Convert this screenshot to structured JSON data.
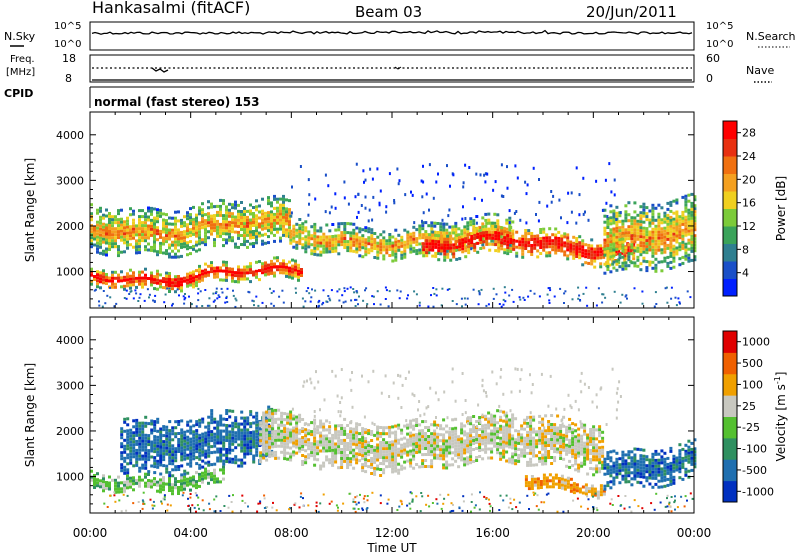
{
  "header": {
    "station": "Hankasalmi (fitACF)",
    "beam": "Beam 03",
    "date": "20/Jun/2011"
  },
  "sky_panel": {
    "left_label": "N.Sky",
    "right_label": "N.Search",
    "ytop": "10^5",
    "ybottom": "10^0"
  },
  "freq_panel": {
    "left_label_line1": "Freq.",
    "left_label_line2": "[MHz]",
    "left_top": "18",
    "left_bottom": "8",
    "right_label": "Nave",
    "right_top": "60",
    "right_bottom": "0"
  },
  "cpid": {
    "label": "CPID",
    "value": "normal (fast stereo) 153"
  },
  "chart_data": [
    {
      "type": "heatmap",
      "ylabel": "Slant Range [km]",
      "y_ticks": [
        "1000",
        "2000",
        "3000",
        "4000"
      ],
      "ylim": [
        200,
        4500
      ],
      "x_ticks": [
        "00:00",
        "04:00",
        "08:00",
        "12:00",
        "16:00",
        "20:00",
        "00:00"
      ],
      "colorbar": {
        "label": "Power [dB]",
        "ticks": [
          "4",
          "8",
          "12",
          "16",
          "20",
          "24",
          "28"
        ],
        "colors": [
          "#0020ff",
          "#1a4fc8",
          "#2f7f90",
          "#3aa35a",
          "#7ccb3a",
          "#f0d020",
          "#f4a020",
          "#f07010",
          "#e83010",
          "#ff0000"
        ]
      },
      "bands": [
        {
          "t0": 0.0,
          "t1": 0.33,
          "r_low": 1500,
          "r_high": 2500,
          "level": 0.55
        },
        {
          "t0": 0.0,
          "t1": 0.35,
          "r_low": 750,
          "r_high": 1150,
          "level": 0.8
        },
        {
          "t0": 0.33,
          "t1": 0.7,
          "r_low": 1400,
          "r_high": 2100,
          "level": 0.55
        },
        {
          "t0": 0.55,
          "t1": 0.9,
          "r_low": 1300,
          "r_high": 1900,
          "level": 0.85
        },
        {
          "t0": 0.85,
          "t1": 1.0,
          "r_low": 1100,
          "r_high": 2600,
          "level": 0.55
        }
      ]
    },
    {
      "type": "heatmap",
      "ylabel": "Slant Range [km]",
      "y_ticks": [
        "1000",
        "2000",
        "3000",
        "4000"
      ],
      "ylim": [
        200,
        4500
      ],
      "x_ticks": [
        "00:00",
        "04:00",
        "08:00",
        "12:00",
        "16:00",
        "20:00",
        "00:00"
      ],
      "xlabel": "Time UT",
      "colorbar": {
        "label_main": "Velocity [m s",
        "label_sup": "-1",
        "label_end": "]",
        "ticks": [
          "1000",
          "500",
          "100",
          "25",
          "-25",
          "-100",
          "-500",
          "-1000"
        ],
        "colors": [
          "#0030c0",
          "#1f6fb0",
          "#2f9060",
          "#54c030",
          "#c8c8c0",
          "#f0a000",
          "#f06000",
          "#e00000"
        ]
      },
      "bands": [
        {
          "t0": 0.0,
          "t1": 0.22,
          "r_low": 800,
          "r_high": 1150,
          "color_index": 3
        },
        {
          "t0": 0.05,
          "t1": 0.3,
          "r_low": 1200,
          "r_high": 2400,
          "color_index": 1
        },
        {
          "t0": 0.28,
          "t1": 0.85,
          "r_low": 1200,
          "r_high": 2300,
          "color_index": 4
        },
        {
          "t0": 0.72,
          "t1": 0.85,
          "r_low": 700,
          "r_high": 1000,
          "color_index": 5
        },
        {
          "t0": 0.85,
          "t1": 1.0,
          "r_low": 900,
          "r_high": 1700,
          "color_index": 1
        }
      ]
    }
  ]
}
